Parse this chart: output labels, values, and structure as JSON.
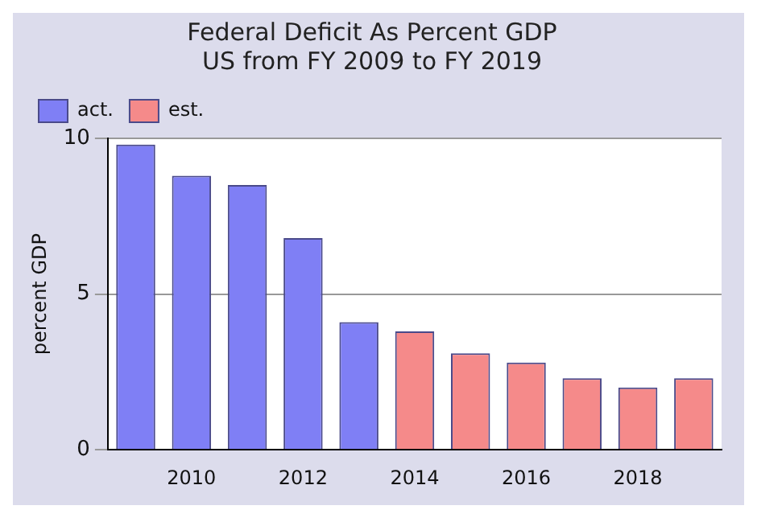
{
  "chart_data": {
    "type": "bar",
    "title": "Federal Deficit As Percent GDP",
    "subtitle": "US from FY 2009 to FY 2019",
    "ylabel": "percent GDP",
    "categories": [
      null,
      "2010",
      null,
      "2012",
      null,
      "2014",
      null,
      "2016",
      null,
      "2018",
      null
    ],
    "series": [
      {
        "name": "act.",
        "color": "#7f7ff5",
        "values": [
          9.8,
          8.8,
          8.5,
          6.8,
          4.1,
          null,
          null,
          null,
          null,
          null,
          null
        ]
      },
      {
        "name": "est.",
        "color": "#f58a8a",
        "values": [
          null,
          null,
          null,
          null,
          null,
          3.8,
          3.1,
          2.8,
          2.3,
          2.0,
          2.3
        ]
      }
    ],
    "ylim": [
      0,
      10
    ],
    "yticks": [
      0,
      5,
      10
    ],
    "grid": "y",
    "legend": "top left"
  }
}
